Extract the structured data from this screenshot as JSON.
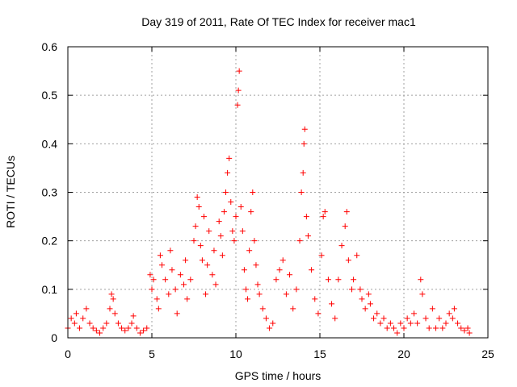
{
  "chart_data": {
    "type": "scatter",
    "title": "Day 319 of 2011, Rate Of TEC Index for receiver mac1",
    "xlabel": "GPS time / hours",
    "ylabel": "ROTI / TECUs",
    "xlim": [
      0,
      25
    ],
    "ylim": [
      0,
      0.6
    ],
    "xticks": [
      "0",
      "5",
      "10",
      "15",
      "20",
      "25"
    ],
    "yticks": [
      "0",
      "0.1",
      "0.2",
      "0.3",
      "0.4",
      "0.5",
      "0.6"
    ],
    "grid": true,
    "marker": "+",
    "color": "#ff0000",
    "series": [
      {
        "points": [
          [
            0.0,
            0.02
          ],
          [
            0.2,
            0.04
          ],
          [
            0.4,
            0.03
          ],
          [
            0.5,
            0.05
          ],
          [
            0.7,
            0.02
          ],
          [
            0.9,
            0.04
          ],
          [
            1.1,
            0.06
          ],
          [
            1.3,
            0.03
          ],
          [
            1.5,
            0.02
          ],
          [
            1.7,
            0.015
          ],
          [
            1.9,
            0.01
          ],
          [
            2.1,
            0.02
          ],
          [
            2.3,
            0.03
          ],
          [
            2.5,
            0.06
          ],
          [
            2.6,
            0.09
          ],
          [
            2.7,
            0.08
          ],
          [
            2.8,
            0.05
          ],
          [
            3.0,
            0.03
          ],
          [
            3.2,
            0.02
          ],
          [
            3.4,
            0.015
          ],
          [
            3.6,
            0.02
          ],
          [
            3.8,
            0.03
          ],
          [
            3.9,
            0.045
          ],
          [
            4.1,
            0.02
          ],
          [
            4.3,
            0.01
          ],
          [
            4.5,
            0.015
          ],
          [
            4.7,
            0.02
          ],
          [
            4.9,
            0.13
          ],
          [
            5.0,
            0.1
          ],
          [
            5.1,
            0.12
          ],
          [
            5.3,
            0.08
          ],
          [
            5.4,
            0.06
          ],
          [
            5.5,
            0.17
          ],
          [
            5.6,
            0.15
          ],
          [
            5.8,
            0.12
          ],
          [
            6.0,
            0.09
          ],
          [
            6.1,
            0.18
          ],
          [
            6.2,
            0.14
          ],
          [
            6.4,
            0.1
          ],
          [
            6.5,
            0.05
          ],
          [
            6.7,
            0.13
          ],
          [
            6.9,
            0.11
          ],
          [
            7.0,
            0.16
          ],
          [
            7.1,
            0.08
          ],
          [
            7.3,
            0.12
          ],
          [
            7.5,
            0.2
          ],
          [
            7.6,
            0.23
          ],
          [
            7.7,
            0.29
          ],
          [
            7.8,
            0.27
          ],
          [
            7.9,
            0.19
          ],
          [
            8.0,
            0.16
          ],
          [
            8.1,
            0.25
          ],
          [
            8.2,
            0.09
          ],
          [
            8.3,
            0.15
          ],
          [
            8.4,
            0.22
          ],
          [
            8.6,
            0.13
          ],
          [
            8.7,
            0.18
          ],
          [
            8.8,
            0.11
          ],
          [
            9.0,
            0.24
          ],
          [
            9.1,
            0.21
          ],
          [
            9.2,
            0.17
          ],
          [
            9.3,
            0.26
          ],
          [
            9.4,
            0.3
          ],
          [
            9.5,
            0.34
          ],
          [
            9.6,
            0.37
          ],
          [
            9.7,
            0.28
          ],
          [
            9.8,
            0.22
          ],
          [
            9.9,
            0.2
          ],
          [
            10.0,
            0.25
          ],
          [
            10.1,
            0.48
          ],
          [
            10.15,
            0.51
          ],
          [
            10.2,
            0.55
          ],
          [
            10.3,
            0.27
          ],
          [
            10.4,
            0.22
          ],
          [
            10.5,
            0.14
          ],
          [
            10.6,
            0.1
          ],
          [
            10.7,
            0.08
          ],
          [
            10.8,
            0.18
          ],
          [
            10.9,
            0.26
          ],
          [
            11.0,
            0.3
          ],
          [
            11.1,
            0.2
          ],
          [
            11.2,
            0.15
          ],
          [
            11.3,
            0.11
          ],
          [
            11.4,
            0.09
          ],
          [
            11.6,
            0.06
          ],
          [
            11.8,
            0.04
          ],
          [
            12.0,
            0.02
          ],
          [
            12.2,
            0.03
          ],
          [
            12.4,
            0.12
          ],
          [
            12.6,
            0.14
          ],
          [
            12.8,
            0.16
          ],
          [
            13.0,
            0.09
          ],
          [
            13.2,
            0.13
          ],
          [
            13.4,
            0.06
          ],
          [
            13.6,
            0.1
          ],
          [
            13.8,
            0.2
          ],
          [
            13.9,
            0.3
          ],
          [
            14.0,
            0.34
          ],
          [
            14.05,
            0.4
          ],
          [
            14.1,
            0.43
          ],
          [
            14.2,
            0.25
          ],
          [
            14.3,
            0.21
          ],
          [
            14.5,
            0.14
          ],
          [
            14.7,
            0.08
          ],
          [
            14.9,
            0.05
          ],
          [
            15.1,
            0.17
          ],
          [
            15.2,
            0.25
          ],
          [
            15.3,
            0.26
          ],
          [
            15.5,
            0.12
          ],
          [
            15.7,
            0.07
          ],
          [
            15.9,
            0.04
          ],
          [
            16.1,
            0.12
          ],
          [
            16.3,
            0.19
          ],
          [
            16.5,
            0.23
          ],
          [
            16.6,
            0.26
          ],
          [
            16.7,
            0.16
          ],
          [
            16.9,
            0.1
          ],
          [
            17.0,
            0.12
          ],
          [
            17.2,
            0.17
          ],
          [
            17.4,
            0.1
          ],
          [
            17.5,
            0.08
          ],
          [
            17.7,
            0.06
          ],
          [
            17.9,
            0.09
          ],
          [
            18.0,
            0.07
          ],
          [
            18.2,
            0.04
          ],
          [
            18.4,
            0.05
          ],
          [
            18.6,
            0.03
          ],
          [
            18.8,
            0.04
          ],
          [
            19.0,
            0.02
          ],
          [
            19.2,
            0.03
          ],
          [
            19.4,
            0.02
          ],
          [
            19.6,
            0.01
          ],
          [
            19.8,
            0.03
          ],
          [
            20.0,
            0.02
          ],
          [
            20.2,
            0.04
          ],
          [
            20.4,
            0.03
          ],
          [
            20.6,
            0.05
          ],
          [
            20.8,
            0.03
          ],
          [
            21.0,
            0.12
          ],
          [
            21.1,
            0.09
          ],
          [
            21.3,
            0.04
          ],
          [
            21.5,
            0.02
          ],
          [
            21.7,
            0.06
          ],
          [
            21.9,
            0.02
          ],
          [
            22.1,
            0.04
          ],
          [
            22.3,
            0.02
          ],
          [
            22.5,
            0.03
          ],
          [
            22.7,
            0.05
          ],
          [
            22.9,
            0.04
          ],
          [
            23.0,
            0.06
          ],
          [
            23.2,
            0.03
          ],
          [
            23.4,
            0.02
          ],
          [
            23.6,
            0.015
          ],
          [
            23.8,
            0.02
          ],
          [
            23.9,
            0.01
          ]
        ]
      }
    ]
  }
}
